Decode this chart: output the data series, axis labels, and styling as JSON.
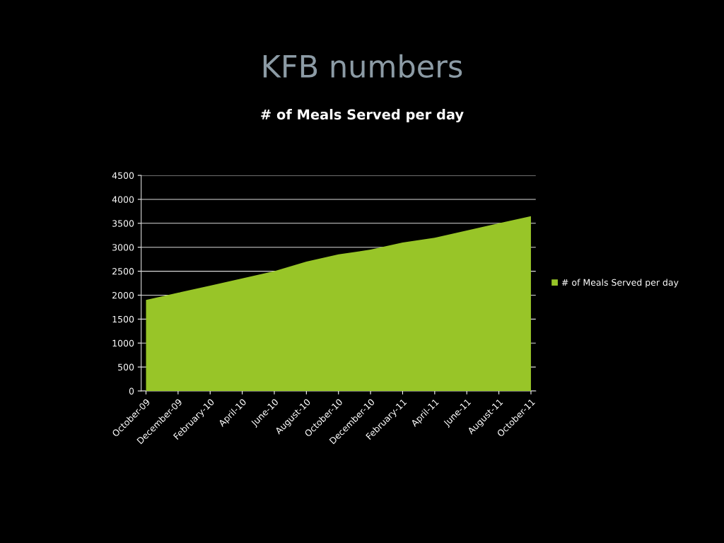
{
  "chart_data": {
    "type": "area",
    "title": "KFB numbers",
    "subtitle": "# of Meals Served per day",
    "categories": [
      "October-09",
      "December-09",
      "February-10",
      "April-10",
      "June-10",
      "August-10",
      "October-10",
      "December-10",
      "February-11",
      "April-11",
      "June-11",
      "August-11",
      "October-11"
    ],
    "series": [
      {
        "name": "# of Meals Served per day",
        "color": "#98c528",
        "values": [
          1900,
          2050,
          2200,
          2350,
          2500,
          2700,
          2850,
          2950,
          3100,
          3200,
          3350,
          3500,
          3650
        ]
      }
    ],
    "ylim": [
      0,
      4500
    ],
    "yticks": [
      0,
      500,
      1000,
      1500,
      2000,
      2500,
      3000,
      3500,
      4000,
      4500
    ],
    "grid": "y",
    "legend": "right"
  }
}
